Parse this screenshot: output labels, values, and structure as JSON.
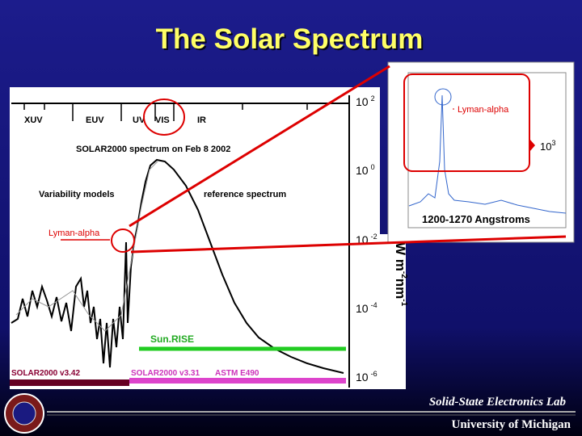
{
  "title": "The Solar Spectrum",
  "main_plot": {
    "band_labels": [
      "XUV",
      "EUV",
      "UV",
      "VIS",
      "IR"
    ],
    "plot_title": "SOLAR2000 spectrum on Feb 8 2002",
    "variability_label": "Variability models",
    "reference_label": "reference spectrum",
    "lyman_alpha_label": "Lyman-alpha",
    "y_ticks": [
      {
        "base": "10",
        "exp": "2"
      },
      {
        "base": "10",
        "exp": "0"
      },
      {
        "base": "10",
        "exp": "-2"
      },
      {
        "base": "10",
        "exp": "-4"
      },
      {
        "base": "10",
        "exp": "-6"
      }
    ],
    "y_axis_label": [
      "W m",
      "-2",
      "nm",
      "-1"
    ],
    "sunrise_label": "Sun.RISE",
    "v342_label": "SOLAR2000 v3.42",
    "v331_label": "SOLAR2000 v3.31",
    "astm_label": "ASTM E490"
  },
  "inset": {
    "lyman_alpha_label": "Lyman-alpha",
    "scale": {
      "base": "10",
      "exp": "3"
    },
    "range_label": "1200-1270 Angstroms"
  },
  "footer": {
    "lab": "Solid-State Electronics Lab",
    "university": "University of Michigan"
  }
}
